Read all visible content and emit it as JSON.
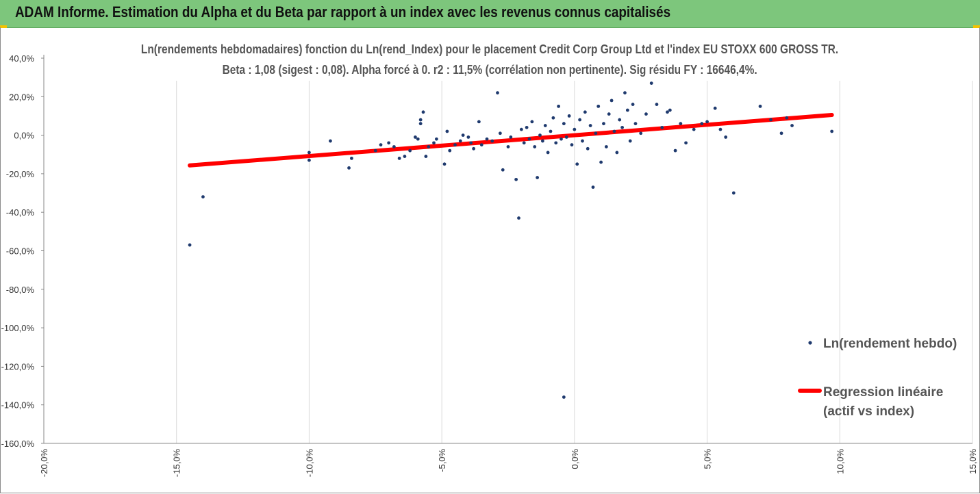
{
  "header": {
    "title": "ADAM Informe. Estimation du Alpha et du Beta par rapport à un index avec les revenus connus capitalisés"
  },
  "colors": {
    "banner": "#7dc67c",
    "accent": "#f2c200",
    "points": "#1f3a6e",
    "regression": "#ff0000",
    "text": "#555555"
  },
  "chart_data": {
    "type": "scatter",
    "title": "Ln(rendements hebdomadaires) fonction du Ln(rend_Index) pour le placement Credit Corp Group Ltd et l'index EU STOXX 600 GROSS TR.",
    "subtitle": "Beta : 1,08 (sigest : 0,08). Alpha forcé à 0. r2 : 11,5% (corrélation non pertinente). Sig résidu FY : 16646,4%.",
    "xlim": [
      -20,
      15
    ],
    "ylim": [
      -160,
      40
    ],
    "x_ticks": [
      "-20,0%",
      "-15,0%",
      "-10,0%",
      "-5,0%",
      "0,0%",
      "5,0%",
      "10,0%",
      "15,0%"
    ],
    "y_ticks": [
      "40,0%",
      "20,0%",
      "0,0%",
      "-20,0%",
      "-40,0%",
      "-60,0%",
      "-80,0%",
      "-100,0%",
      "-120,0%",
      "-140,0%",
      "-160,0%"
    ],
    "grid": "vertical",
    "legend_position": "right",
    "series": [
      {
        "name": "Ln(rendement hebdo)",
        "type": "scatter",
        "points": [
          [
            -14.5,
            -57
          ],
          [
            -14.0,
            -32
          ],
          [
            -10.0,
            -13
          ],
          [
            -10.0,
            -9
          ],
          [
            -9.2,
            -3
          ],
          [
            -8.5,
            -17
          ],
          [
            -8.4,
            -12
          ],
          [
            -7.5,
            -8
          ],
          [
            -7.3,
            -5
          ],
          [
            -7.0,
            -4
          ],
          [
            -6.8,
            -6
          ],
          [
            -6.6,
            -12
          ],
          [
            -6.4,
            -11
          ],
          [
            -6.2,
            -8
          ],
          [
            -6.0,
            -1
          ],
          [
            -5.9,
            -2
          ],
          [
            -5.7,
            12
          ],
          [
            -5.8,
            8
          ],
          [
            -5.8,
            6
          ],
          [
            -5.6,
            -11
          ],
          [
            -5.5,
            -6
          ],
          [
            -5.3,
            -4
          ],
          [
            -5.2,
            -2
          ],
          [
            -4.9,
            -15
          ],
          [
            -4.8,
            2
          ],
          [
            -4.7,
            -8
          ],
          [
            -4.5,
            -5
          ],
          [
            -4.3,
            -3
          ],
          [
            -4.2,
            0
          ],
          [
            -4.0,
            -1
          ],
          [
            -3.9,
            -4
          ],
          [
            -3.8,
            -7
          ],
          [
            -3.6,
            7
          ],
          [
            -3.5,
            -5
          ],
          [
            -3.3,
            -2
          ],
          [
            -3.1,
            -3
          ],
          [
            -2.9,
            22
          ],
          [
            -2.8,
            1
          ],
          [
            -2.7,
            -18
          ],
          [
            -2.5,
            -6
          ],
          [
            -2.4,
            -1
          ],
          [
            -2.2,
            -23
          ],
          [
            -2.1,
            -43
          ],
          [
            -2.0,
            3
          ],
          [
            -1.9,
            -4
          ],
          [
            -1.8,
            4
          ],
          [
            -1.7,
            -2
          ],
          [
            -1.6,
            7
          ],
          [
            -1.5,
            -6
          ],
          [
            -1.4,
            -22
          ],
          [
            -1.3,
            0
          ],
          [
            -1.2,
            -3
          ],
          [
            -1.1,
            5
          ],
          [
            -1.0,
            -9
          ],
          [
            -0.9,
            2
          ],
          [
            -0.8,
            9
          ],
          [
            -0.7,
            -4
          ],
          [
            -0.6,
            15
          ],
          [
            -0.5,
            -2
          ],
          [
            -0.4,
            6
          ],
          [
            -0.4,
            -136
          ],
          [
            -0.3,
            -1
          ],
          [
            -0.2,
            10
          ],
          [
            -0.1,
            -5
          ],
          [
            0.0,
            3
          ],
          [
            0.1,
            -15
          ],
          [
            0.2,
            8
          ],
          [
            0.3,
            -3
          ],
          [
            0.4,
            12
          ],
          [
            0.5,
            -7
          ],
          [
            0.6,
            5
          ],
          [
            0.7,
            -27
          ],
          [
            0.8,
            1
          ],
          [
            0.9,
            15
          ],
          [
            1.0,
            -14
          ],
          [
            1.1,
            6
          ],
          [
            1.2,
            -6
          ],
          [
            1.3,
            11
          ],
          [
            1.4,
            18
          ],
          [
            1.5,
            2
          ],
          [
            1.6,
            -9
          ],
          [
            1.7,
            8
          ],
          [
            1.8,
            4
          ],
          [
            1.9,
            22
          ],
          [
            2.0,
            13
          ],
          [
            2.1,
            -3
          ],
          [
            2.2,
            16
          ],
          [
            2.3,
            6
          ],
          [
            2.5,
            1
          ],
          [
            2.7,
            11
          ],
          [
            2.9,
            27
          ],
          [
            3.1,
            16
          ],
          [
            3.3,
            4
          ],
          [
            3.5,
            12
          ],
          [
            3.6,
            13
          ],
          [
            3.8,
            -8
          ],
          [
            4.0,
            6
          ],
          [
            4.2,
            -4
          ],
          [
            4.5,
            3
          ],
          [
            4.8,
            6
          ],
          [
            5.0,
            7
          ],
          [
            5.3,
            14
          ],
          [
            5.5,
            3
          ],
          [
            5.7,
            -1
          ],
          [
            6.0,
            -30
          ],
          [
            7.0,
            15
          ],
          [
            7.4,
            8
          ],
          [
            7.8,
            1
          ],
          [
            8.0,
            9
          ],
          [
            8.2,
            5
          ],
          [
            9.7,
            2
          ]
        ]
      },
      {
        "name": "Regression linéaire",
        "type": "line",
        "note": "(actif vs index)",
        "x": [
          -14.5,
          9.7
        ],
        "y": [
          -15.7,
          10.5
        ]
      }
    ]
  }
}
